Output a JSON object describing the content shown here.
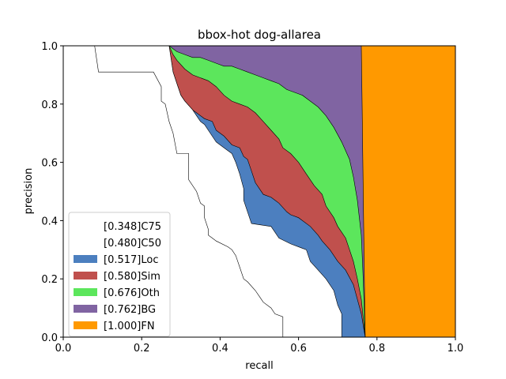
{
  "chart_data": {
    "type": "area",
    "title": "bbox-hot dog-allarea",
    "xlabel": "recall",
    "ylabel": "precision",
    "xlim": [
      0,
      1
    ],
    "ylim": [
      0,
      1
    ],
    "x_ticks": [
      "0.0",
      "0.2",
      "0.4",
      "0.6",
      "0.8",
      "1.0"
    ],
    "y_ticks": [
      "0.0",
      "0.2",
      "0.4",
      "0.6",
      "0.8",
      "1.0"
    ],
    "grid": false,
    "legend_position": "lower-left",
    "series": [
      {
        "name": "[0.348]C75",
        "color": "#ffffff",
        "points": [
          [
            0.08,
            1.0
          ],
          [
            0.09,
            0.91
          ],
          [
            0.23,
            0.91
          ],
          [
            0.25,
            0.86
          ],
          [
            0.25,
            0.81
          ],
          [
            0.26,
            0.8
          ],
          [
            0.27,
            0.74
          ],
          [
            0.28,
            0.7
          ],
          [
            0.29,
            0.63
          ],
          [
            0.32,
            0.63
          ],
          [
            0.32,
            0.54
          ],
          [
            0.34,
            0.5
          ],
          [
            0.35,
            0.46
          ],
          [
            0.36,
            0.45
          ],
          [
            0.36,
            0.41
          ],
          [
            0.37,
            0.37
          ],
          [
            0.37,
            0.35
          ],
          [
            0.38,
            0.34
          ],
          [
            0.39,
            0.33
          ],
          [
            0.42,
            0.31
          ],
          [
            0.43,
            0.3
          ],
          [
            0.44,
            0.28
          ],
          [
            0.45,
            0.24
          ],
          [
            0.46,
            0.2
          ],
          [
            0.47,
            0.19
          ],
          [
            0.49,
            0.16
          ],
          [
            0.5,
            0.14
          ],
          [
            0.51,
            0.12
          ],
          [
            0.53,
            0.1
          ],
          [
            0.54,
            0.08
          ],
          [
            0.56,
            0.07
          ],
          [
            0.56,
            0.04
          ],
          [
            0.56,
            0.0
          ]
        ]
      },
      {
        "name": "[0.480]C50",
        "color": "#ffffff",
        "points": [
          [
            0.27,
            1.0
          ],
          [
            0.28,
            0.91
          ],
          [
            0.29,
            0.87
          ],
          [
            0.3,
            0.83
          ],
          [
            0.31,
            0.81
          ],
          [
            0.33,
            0.78
          ],
          [
            0.34,
            0.76
          ],
          [
            0.35,
            0.74
          ],
          [
            0.36,
            0.73
          ],
          [
            0.37,
            0.71
          ],
          [
            0.39,
            0.67
          ],
          [
            0.41,
            0.65
          ],
          [
            0.43,
            0.63
          ],
          [
            0.44,
            0.6
          ],
          [
            0.45,
            0.56
          ],
          [
            0.46,
            0.51
          ],
          [
            0.46,
            0.47
          ],
          [
            0.47,
            0.43
          ],
          [
            0.48,
            0.39
          ],
          [
            0.53,
            0.38
          ],
          [
            0.55,
            0.34
          ],
          [
            0.58,
            0.32
          ],
          [
            0.62,
            0.3
          ],
          [
            0.63,
            0.26
          ],
          [
            0.65,
            0.23
          ],
          [
            0.67,
            0.2
          ],
          [
            0.69,
            0.16
          ],
          [
            0.7,
            0.11
          ],
          [
            0.71,
            0.08
          ],
          [
            0.71,
            0.0
          ]
        ]
      },
      {
        "name": "[0.517]Loc",
        "color": "#4c7fbf",
        "points": [
          [
            0.27,
            1.0
          ],
          [
            0.28,
            0.91
          ],
          [
            0.29,
            0.87
          ],
          [
            0.3,
            0.83
          ],
          [
            0.31,
            0.81
          ],
          [
            0.33,
            0.78
          ],
          [
            0.34,
            0.77
          ],
          [
            0.36,
            0.75
          ],
          [
            0.38,
            0.74
          ],
          [
            0.39,
            0.71
          ],
          [
            0.41,
            0.69
          ],
          [
            0.43,
            0.66
          ],
          [
            0.45,
            0.65
          ],
          [
            0.46,
            0.62
          ],
          [
            0.47,
            0.61
          ],
          [
            0.48,
            0.57
          ],
          [
            0.49,
            0.53
          ],
          [
            0.5,
            0.51
          ],
          [
            0.51,
            0.49
          ],
          [
            0.53,
            0.48
          ],
          [
            0.55,
            0.46
          ],
          [
            0.57,
            0.43
          ],
          [
            0.58,
            0.42
          ],
          [
            0.6,
            0.41
          ],
          [
            0.63,
            0.38
          ],
          [
            0.65,
            0.35
          ],
          [
            0.66,
            0.33
          ],
          [
            0.68,
            0.3
          ],
          [
            0.7,
            0.26
          ],
          [
            0.72,
            0.23
          ],
          [
            0.74,
            0.18
          ],
          [
            0.76,
            0.08
          ],
          [
            0.77,
            0.0
          ]
        ]
      },
      {
        "name": "[0.580]Sim",
        "color": "#c0504d",
        "points": [
          [
            0.27,
            1.0
          ],
          [
            0.28,
            0.97
          ],
          [
            0.29,
            0.95
          ],
          [
            0.31,
            0.92
          ],
          [
            0.33,
            0.9
          ],
          [
            0.35,
            0.89
          ],
          [
            0.37,
            0.88
          ],
          [
            0.39,
            0.86
          ],
          [
            0.41,
            0.83
          ],
          [
            0.43,
            0.81
          ],
          [
            0.45,
            0.8
          ],
          [
            0.47,
            0.79
          ],
          [
            0.49,
            0.77
          ],
          [
            0.51,
            0.74
          ],
          [
            0.53,
            0.71
          ],
          [
            0.55,
            0.68
          ],
          [
            0.56,
            0.65
          ],
          [
            0.58,
            0.63
          ],
          [
            0.6,
            0.6
          ],
          [
            0.62,
            0.56
          ],
          [
            0.64,
            0.52
          ],
          [
            0.66,
            0.49
          ],
          [
            0.67,
            0.45
          ],
          [
            0.69,
            0.41
          ],
          [
            0.7,
            0.38
          ],
          [
            0.72,
            0.34
          ],
          [
            0.73,
            0.3
          ],
          [
            0.74,
            0.26
          ],
          [
            0.75,
            0.2
          ],
          [
            0.76,
            0.13
          ],
          [
            0.77,
            0.0
          ]
        ]
      },
      {
        "name": "[0.676]Oth",
        "color": "#5ce65c",
        "points": [
          [
            0.27,
            1.0
          ],
          [
            0.29,
            0.98
          ],
          [
            0.31,
            0.97
          ],
          [
            0.33,
            0.96
          ],
          [
            0.35,
            0.96
          ],
          [
            0.37,
            0.95
          ],
          [
            0.39,
            0.94
          ],
          [
            0.41,
            0.93
          ],
          [
            0.43,
            0.93
          ],
          [
            0.45,
            0.92
          ],
          [
            0.47,
            0.91
          ],
          [
            0.49,
            0.9
          ],
          [
            0.51,
            0.89
          ],
          [
            0.53,
            0.88
          ],
          [
            0.55,
            0.87
          ],
          [
            0.57,
            0.85
          ],
          [
            0.59,
            0.84
          ],
          [
            0.61,
            0.83
          ],
          [
            0.63,
            0.81
          ],
          [
            0.65,
            0.79
          ],
          [
            0.67,
            0.76
          ],
          [
            0.69,
            0.72
          ],
          [
            0.71,
            0.67
          ],
          [
            0.73,
            0.61
          ],
          [
            0.74,
            0.55
          ],
          [
            0.75,
            0.47
          ],
          [
            0.76,
            0.35
          ],
          [
            0.765,
            0.2
          ],
          [
            0.77,
            0.0
          ]
        ]
      },
      {
        "name": "[0.762]BG",
        "color": "#8064a2",
        "points": [
          [
            0.76,
            1.0
          ],
          [
            0.762,
            0.8
          ],
          [
            0.765,
            0.5
          ],
          [
            0.768,
            0.2
          ],
          [
            0.77,
            0.0
          ]
        ]
      },
      {
        "name": "[1.000]FN",
        "color": "#ff9900",
        "points": [
          [
            1.0,
            1.0
          ],
          [
            1.0,
            0.0
          ]
        ]
      }
    ]
  }
}
